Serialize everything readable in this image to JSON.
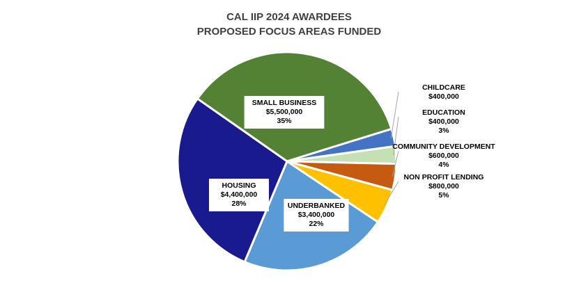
{
  "chart_data": {
    "type": "pie",
    "title": [
      "CAL IIP 2024 AWARDEES",
      "PROPOSED FOCUS AREAS FUNDED"
    ],
    "slices": [
      {
        "label": "SMALL BUSINESS",
        "amount": "$5,500,000",
        "percent": "35%",
        "value": 5500000,
        "color": "#548235"
      },
      {
        "label": "CHILDCARE",
        "amount": "$400,000",
        "percent": "",
        "value": 400000,
        "color": "#4472C4"
      },
      {
        "label": "EDUCATION",
        "amount": "$400,000",
        "percent": "3%",
        "value": 400000,
        "color": "#C5E0B4"
      },
      {
        "label": "COMMUNITY DEVELOPMENT",
        "amount": "$600,000",
        "percent": "4%",
        "value": 600000,
        "color": "#C55A11"
      },
      {
        "label": "NON PROFIT LENDING",
        "amount": "$800,000",
        "percent": "5%",
        "value": 800000,
        "color": "#FFC000"
      },
      {
        "label": "UNDERBANKED",
        "amount": "$3,400,000",
        "percent": "22%",
        "value": 3400000,
        "color": "#5B9BD5"
      },
      {
        "label": "HOUSING",
        "amount": "$4,400,000",
        "percent": "28%",
        "value": 4400000,
        "color": "#1A1A8F"
      }
    ]
  }
}
